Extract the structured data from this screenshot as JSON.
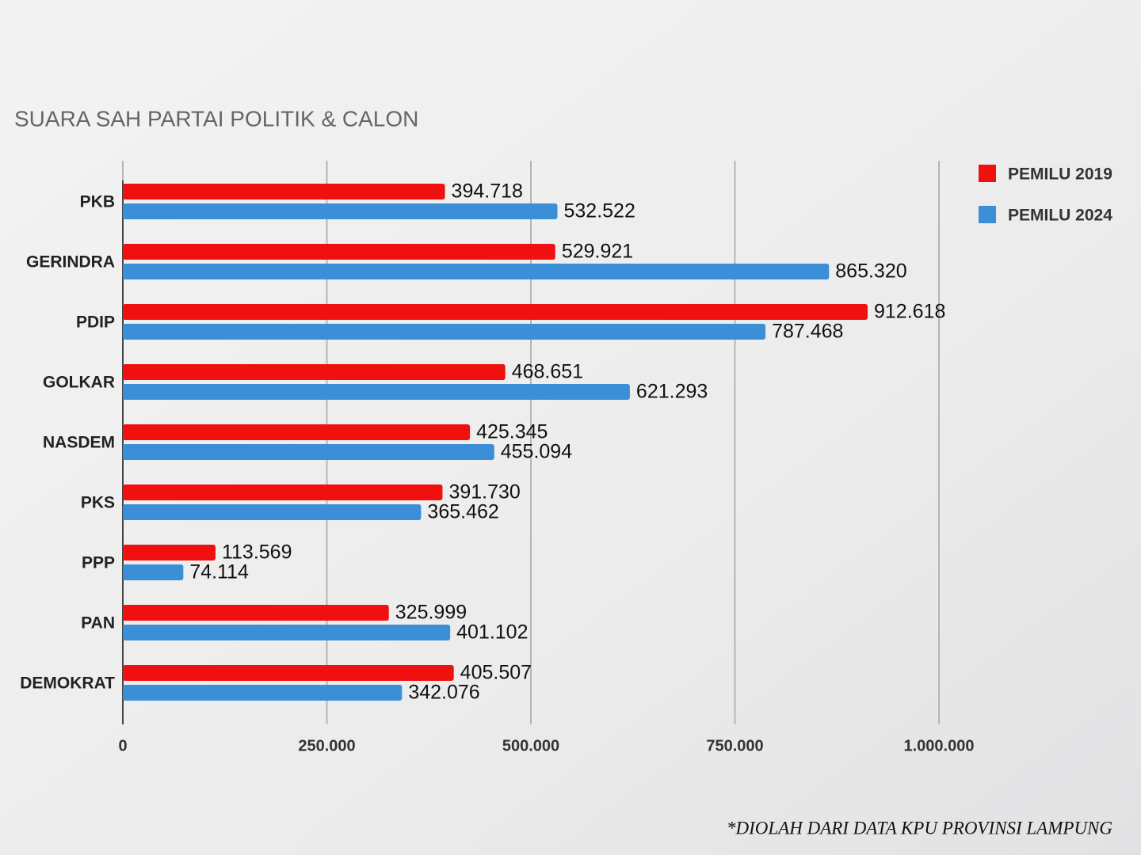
{
  "chart_data": {
    "type": "bar",
    "orientation": "horizontal",
    "title": "SUARA SAH PARTAI POLITIK & CALON",
    "note": "*DIOLAH DARI DATA KPU PROVINSI LAMPUNG",
    "categories": [
      "PKB",
      "GERINDRA",
      "PDIP",
      "GOLKAR",
      "NASDEM",
      "PKS",
      "PPP",
      "PAN",
      "DEMOKRAT"
    ],
    "series": [
      {
        "name": "PEMILU 2019",
        "color": "#f01010",
        "values": [
          394718,
          529921,
          912618,
          468651,
          425345,
          391730,
          113569,
          325999,
          405507
        ],
        "value_labels": [
          "394.718",
          "529.921",
          "912.618",
          "468.651",
          "425.345",
          "391.730",
          "113.569",
          "325.999",
          "405.507"
        ]
      },
      {
        "name": "PEMILU 2024",
        "color": "#3a8fd6",
        "values": [
          532522,
          865320,
          787468,
          621293,
          455094,
          365462,
          74114,
          401102,
          342076
        ],
        "value_labels": [
          "532.522",
          "865.320",
          "787.468",
          "621.293",
          "455.094",
          "365.462",
          "74.114",
          "401.102",
          "342.076"
        ]
      }
    ],
    "xlim": [
      0,
      1000000
    ],
    "xticks": [
      0,
      {
        "value": 250000,
        "label": "250.000"
      },
      {
        "value": 500000,
        "label": "500.000"
      },
      {
        "value": 750000,
        "label": "750.000"
      },
      {
        "value": 1000000,
        "label": "1.000.000"
      }
    ],
    "grid": true,
    "legend": "top-right"
  }
}
